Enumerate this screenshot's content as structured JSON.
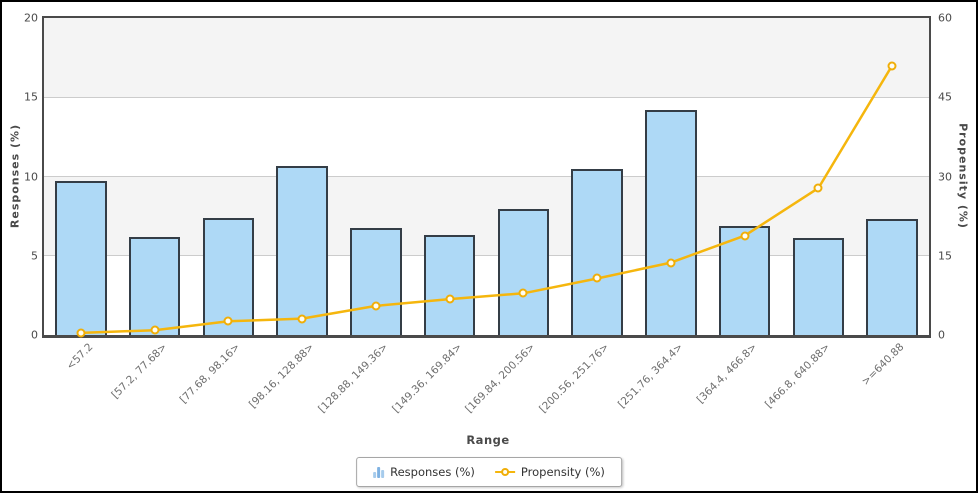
{
  "chart_data": {
    "type": "bar+line combo",
    "title": "",
    "xlabel": "Range",
    "ylabel_left": "Responses (%)",
    "ylabel_right": "Propensity (%)",
    "categories": [
      "<57.2",
      "[57.2, 77.68>",
      "[77.68, 98.16>",
      "[98.16, 128.88>",
      "[128.88, 149.36>",
      "[149.36, 169.84>",
      "[169.84, 200.56>",
      "[200.56, 251.76>",
      "[251.76, 364.4>",
      "[364.4, 466.8>",
      "[466.8, 640.88>",
      ">=640.88"
    ],
    "series": [
      {
        "name": "Responses (%)",
        "type": "bar",
        "axis": "left",
        "values": [
          9.7,
          6.2,
          7.4,
          10.65,
          6.75,
          6.3,
          7.95,
          10.5,
          14.2,
          6.9,
          6.15,
          7.3
        ]
      },
      {
        "name": "Propensity (%)",
        "type": "line",
        "axis": "right",
        "values": [
          0.4,
          0.9,
          2.6,
          3.1,
          5.5,
          6.8,
          7.9,
          10.7,
          13.7,
          18.8,
          27.8,
          51.0
        ]
      }
    ],
    "left_axis": {
      "min": 0,
      "max": 20,
      "ticks": [
        0,
        5,
        10,
        15,
        20
      ]
    },
    "right_axis": {
      "min": 0,
      "max": 60,
      "ticks": [
        0,
        15,
        30,
        45,
        60
      ]
    },
    "grid": "horizontal bands, alternating white / light gray",
    "legend_position": "bottom center",
    "colors": {
      "bar_fill": "#AED9F6",
      "bar_border": "#343D46",
      "line": "#F5B60D",
      "marker_fill": "#FFFDF2",
      "grid_line": "#CCCCCC",
      "band_gray": "#F4F4F4",
      "frame": "#4A4A4A"
    }
  },
  "legend": {
    "items": [
      {
        "label": "Responses (%)",
        "icon": "bar-chart-icon"
      },
      {
        "label": "Propensity (%)",
        "icon": "line-marker-icon"
      }
    ]
  }
}
